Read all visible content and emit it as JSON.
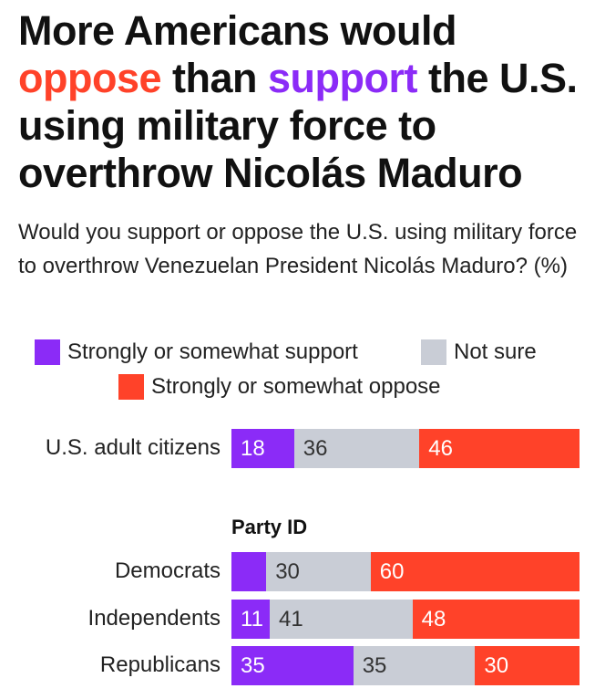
{
  "title": {
    "part1": "More Americans would",
    "opp": "oppose",
    "mid": " than ",
    "sup": "support",
    "part2": " the U.S. using military force to overthrow Nicolás Maduro"
  },
  "subtitle": "Would you support or oppose the U.S. using military force to overthrow Venezuelan President Nicolás Maduro? (%)",
  "chart_data": {
    "type": "bar",
    "stacked": true,
    "orientation": "horizontal",
    "legend": [
      "Strongly or somewhat support",
      "Not sure",
      "Strongly or somewhat oppose"
    ],
    "colors": [
      "#8b2bf7",
      "#c9cdd6",
      "#ff4229"
    ],
    "text_colors": [
      "#ffffff",
      "#333333",
      "#ffffff"
    ],
    "group_label": "Party ID",
    "categories": [
      "U.S. adult citizens",
      "Democrats",
      "Independents",
      "Republicans"
    ],
    "series": [
      {
        "name": "Strongly or somewhat support",
        "values": [
          18,
          10,
          11,
          35
        ],
        "labels": [
          "18",
          null,
          "11",
          "35"
        ]
      },
      {
        "name": "Not sure",
        "values": [
          36,
          30,
          41,
          35
        ],
        "labels": [
          "36",
          "30",
          "41",
          "35"
        ]
      },
      {
        "name": "Strongly or somewhat oppose",
        "values": [
          46,
          60,
          48,
          30
        ],
        "labels": [
          "46",
          "60",
          "48",
          "30"
        ]
      }
    ],
    "xlim": [
      0,
      100
    ]
  }
}
